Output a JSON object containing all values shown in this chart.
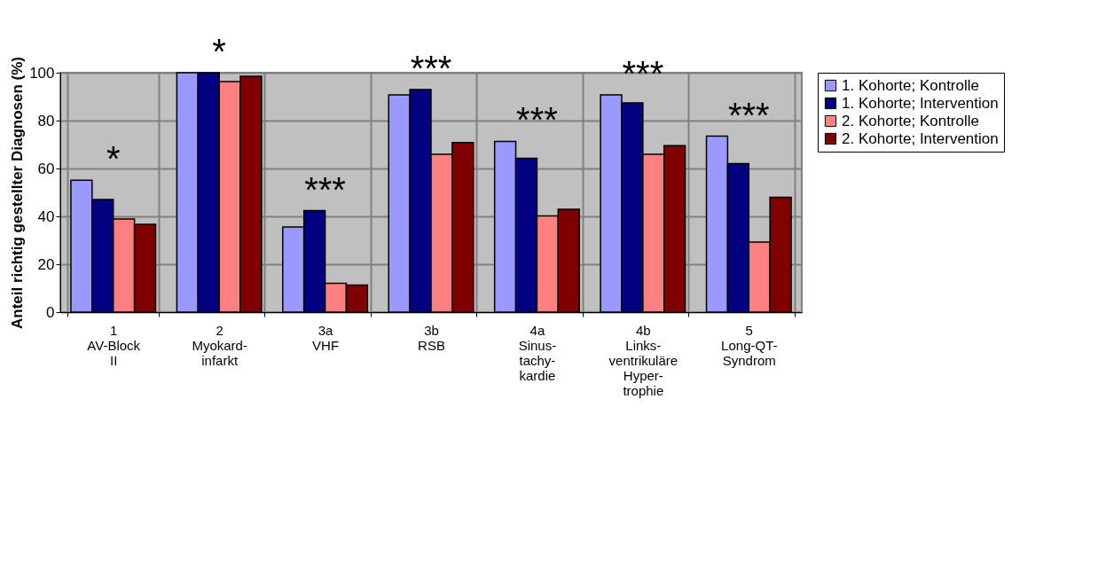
{
  "chart_data": {
    "type": "bar",
    "ylabel": "Anteil richtig gestellter Diagnosen (%)",
    "categories": [
      "1\nAV-Block\nII",
      "2\nMyokard-\ninfarkt",
      "3a\nVHF",
      "3b\nRSB",
      "4a\nSinus-\ntachy-\nkardie",
      "4b\nLinks-\nventrikuläre\nHyper-\ntrophie",
      "5\nLong-QT-\nSyndrom"
    ],
    "series": [
      {
        "name": "1. Kohorte; Kontrolle",
        "color": "#9999ff",
        "values": [
          55.1,
          100,
          35.6,
          90.7,
          71.3,
          90.7,
          73.5
        ]
      },
      {
        "name": "1. Kohorte; Intervention",
        "color": "#000080",
        "values": [
          47,
          100,
          42.4,
          93,
          64.3,
          87.4,
          62
        ]
      },
      {
        "name": "2. Kohorte; Kontrolle",
        "color": "#ff8080",
        "values": [
          38.9,
          96.3,
          12,
          65.9,
          40.2,
          65.9,
          29.3
        ]
      },
      {
        "name": "2. Kohorte; Intervention",
        "color": "#800000",
        "values": [
          36.7,
          98.5,
          11.3,
          70.8,
          43,
          69.5,
          48
        ]
      }
    ],
    "ylim": [
      0,
      100
    ],
    "yticks": [
      0,
      20,
      40,
      60,
      80,
      100
    ],
    "grid": true,
    "legend": "right",
    "annotations": [
      "*",
      "*",
      "***",
      "***",
      "***",
      "***",
      "***"
    ]
  }
}
